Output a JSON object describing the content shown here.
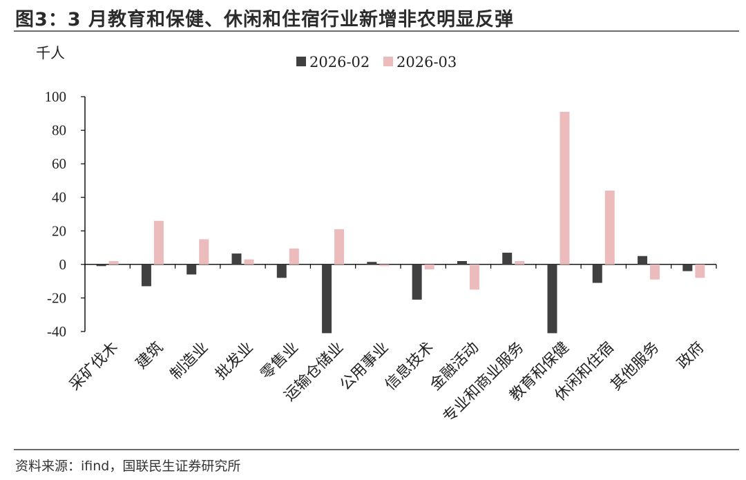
{
  "title": "图3：3 月教育和保健、休闲和住宿行业新增非农明显反弹",
  "source": "资料来源：ifind，国联民生证券研究所",
  "chart_data": {
    "type": "bar",
    "ylabel": "千人",
    "ylim": [
      -40,
      100
    ],
    "yticks": [
      100,
      80,
      60,
      40,
      20,
      0,
      -20,
      -40
    ],
    "legend_position": "top-center",
    "categories": [
      "采矿伐木",
      "建筑",
      "制造业",
      "批发业",
      "零售业",
      "运输仓储业",
      "公用事业",
      "信息技术",
      "金融活动",
      "专业和商业服务",
      "教育和保健",
      "休闲和住宿",
      "其他服务",
      "政府"
    ],
    "series": [
      {
        "name": "2026-02",
        "color": "#404040",
        "values": [
          -1,
          -13,
          -6,
          6.5,
          -8,
          -41,
          1.5,
          -21,
          2,
          7,
          -41,
          -11,
          5,
          -4
        ]
      },
      {
        "name": "2026-03",
        "color": "#ecbcbc",
        "values": [
          2,
          26,
          15,
          3,
          9.5,
          21,
          -1,
          -3,
          -15,
          2,
          91,
          44,
          -9,
          -8
        ]
      }
    ]
  }
}
